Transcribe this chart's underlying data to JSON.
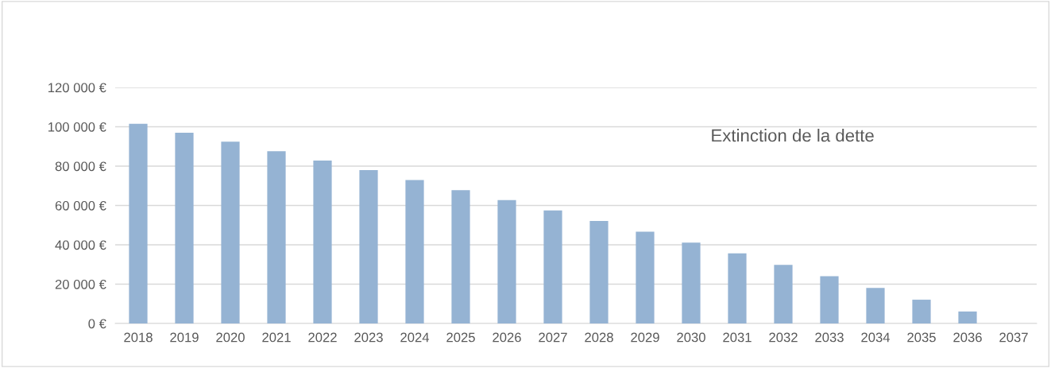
{
  "chart_data": {
    "type": "bar",
    "title": "Extinction de la dette",
    "categories": [
      "2018",
      "2019",
      "2020",
      "2021",
      "2022",
      "2023",
      "2024",
      "2025",
      "2026",
      "2027",
      "2028",
      "2029",
      "2030",
      "2031",
      "2032",
      "2033",
      "2034",
      "2035",
      "2036",
      "2037"
    ],
    "values": [
      101500,
      97000,
      92400,
      87600,
      82800,
      78000,
      72900,
      67800,
      62700,
      57500,
      52100,
      46700,
      41100,
      35700,
      29800,
      24000,
      18100,
      12100,
      6100,
      0
    ],
    "color": "#95b3d3",
    "ylim": [
      0,
      120000
    ],
    "yticks": [
      {
        "value": 0,
        "label": "0 €"
      },
      {
        "value": 20000,
        "label": "20 000 €"
      },
      {
        "value": 40000,
        "label": "40 000 €"
      },
      {
        "value": 60000,
        "label": "60 000 €"
      },
      {
        "value": 80000,
        "label": "80 000 €"
      },
      {
        "value": 100000,
        "label": "100 000 €"
      },
      {
        "value": 120000,
        "label": "120 000 €"
      }
    ],
    "grid": "y"
  }
}
